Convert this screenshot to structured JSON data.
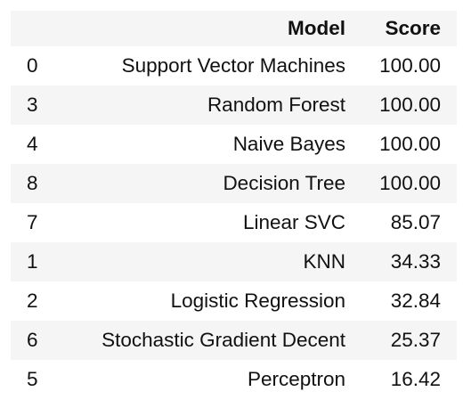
{
  "table": {
    "headers": {
      "index": "",
      "model": "Model",
      "score": "Score"
    },
    "rows": [
      {
        "index": "0",
        "model": "Support Vector Machines",
        "score": "100.00"
      },
      {
        "index": "3",
        "model": "Random Forest",
        "score": "100.00"
      },
      {
        "index": "4",
        "model": "Naive Bayes",
        "score": "100.00"
      },
      {
        "index": "8",
        "model": "Decision Tree",
        "score": "100.00"
      },
      {
        "index": "7",
        "model": "Linear SVC",
        "score": "85.07"
      },
      {
        "index": "1",
        "model": "KNN",
        "score": "34.33"
      },
      {
        "index": "2",
        "model": "Logistic Regression",
        "score": "32.84"
      },
      {
        "index": "6",
        "model": "Stochastic Gradient Decent",
        "score": "25.37"
      },
      {
        "index": "5",
        "model": "Perceptron",
        "score": "16.42"
      }
    ]
  },
  "colors": {
    "stripe": "#f5f5f5",
    "text": "#111111",
    "background": "#ffffff"
  }
}
